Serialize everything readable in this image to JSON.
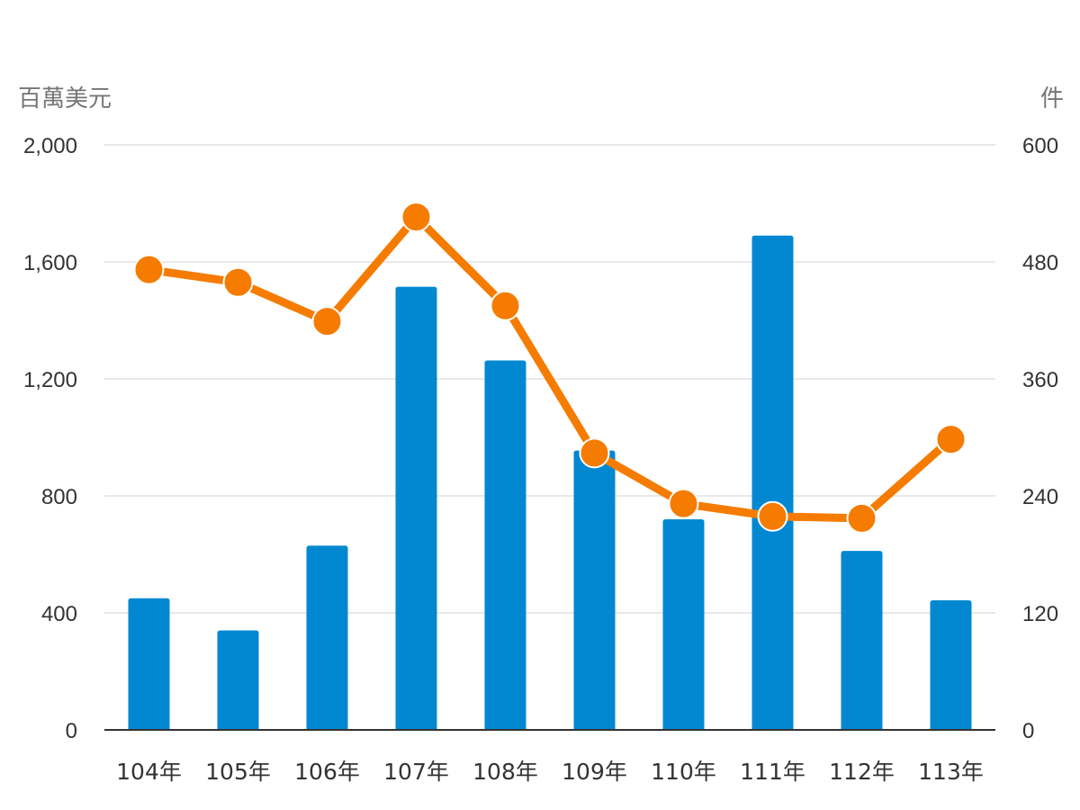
{
  "chart_data": {
    "type": "bar",
    "left_axis_unit": "百萬美元",
    "right_axis_unit": "件",
    "categories": [
      "104年",
      "105年",
      "106年",
      "107年",
      "108年",
      "109年",
      "110年",
      "111年",
      "112年",
      "113年"
    ],
    "left_ticks": [
      "0",
      "400",
      "800",
      "1,200",
      "1,600",
      "2,000"
    ],
    "right_ticks": [
      "0",
      "120",
      "240",
      "360",
      "480",
      "600"
    ],
    "ylim_left": [
      0,
      2000
    ],
    "ylim_right": [
      0,
      600
    ],
    "grid": true,
    "series": [
      {
        "type": "bar",
        "axis": "left",
        "color": "#0288d1",
        "values": [
          450,
          340,
          630,
          1515,
          1263,
          955,
          720,
          1690,
          612,
          443
        ]
      },
      {
        "type": "line",
        "axis": "right",
        "color": "#f57c00",
        "values": [
          472,
          459,
          419,
          526,
          435,
          284,
          232,
          219,
          217,
          298
        ]
      }
    ]
  }
}
